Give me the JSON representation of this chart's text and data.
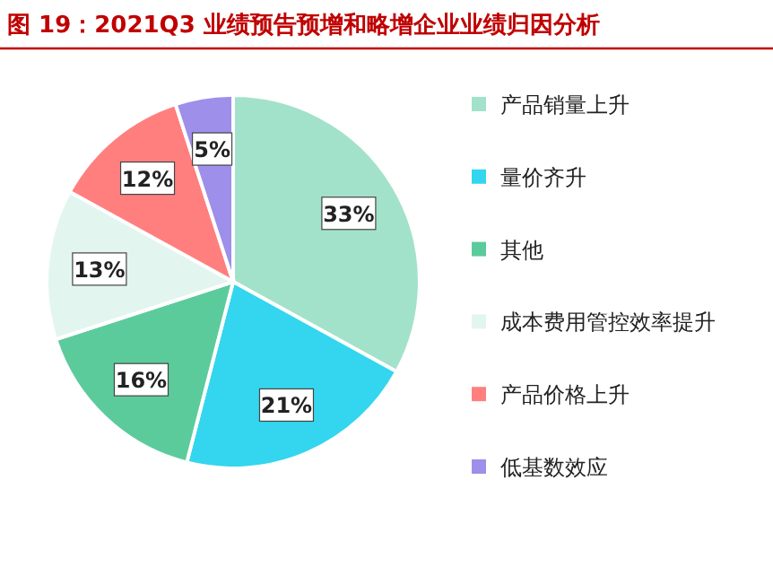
{
  "chart_data": {
    "type": "pie",
    "title": "图 19：2021Q3 业绩预告预增和略增企业业绩归因分析",
    "categories": [
      "产品销量上升",
      "量价齐升",
      "其他",
      "成本费用管控效率提升",
      "产品价格上升",
      "低基数效应"
    ],
    "values": [
      33,
      21,
      16,
      13,
      12,
      5
    ],
    "colors": [
      "#a3e2ca",
      "#33d6ee",
      "#5ccb9c",
      "#e3f5ef",
      "#ff7f7f",
      "#9d8fea"
    ],
    "value_labels": [
      "33%",
      "21%",
      "16%",
      "13%",
      "12%",
      "5%"
    ],
    "legend": "right"
  }
}
